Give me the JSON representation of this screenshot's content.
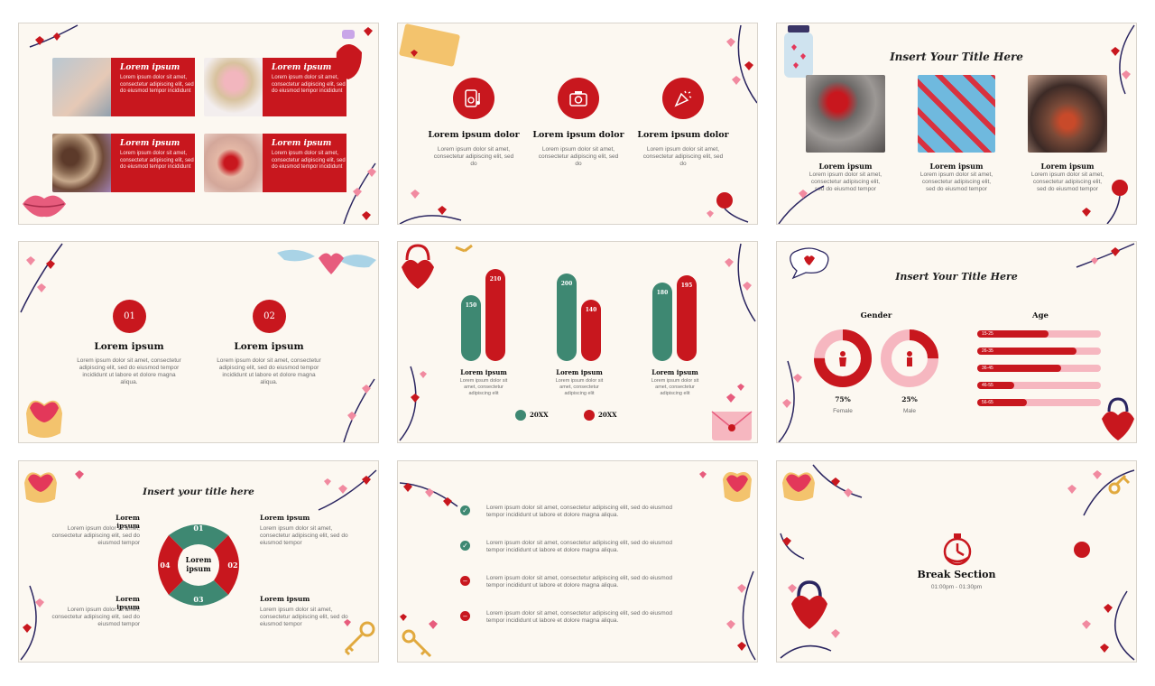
{
  "colors": {
    "red": "#c8171e",
    "green": "#3e8872",
    "pink": "#f6b7c0",
    "bg": "#fcf8f1"
  },
  "lorem_title": "Lorem ipsum",
  "lorem_title_dolor": "Lorem ipsum dolor",
  "s1": {
    "boxes": [
      {
        "title": "Lorem ipsum",
        "body": "Lorem ipsum dolor sit amet, consectetur adipiscing elit, sed do eiusmod tempor incididunt"
      },
      {
        "title": "Lorem ipsum",
        "body": "Lorem ipsum dolor sit amet, consectetur adipiscing elit, sed do eiusmod tempor incididunt"
      },
      {
        "title": "Lorem ipsum",
        "body": "Lorem ipsum dolor sit amet, consectetur adipiscing elit, sed do eiusmod tempor incididunt"
      },
      {
        "title": "Lorem ipsum",
        "body": "Lorem ipsum dolor sit amet, consectetur adipiscing elit, sed do eiusmod tempor incididunt"
      }
    ]
  },
  "s2": {
    "items": [
      {
        "title": "Lorem ipsum dolor",
        "body": "Lorem ipsum dolor sit amet, consectetur adipiscing elit, sed do",
        "icon": "music-player-icon"
      },
      {
        "title": "Lorem ipsum dolor",
        "body": "Lorem ipsum dolor sit amet, consectetur adipiscing elit, sed do",
        "icon": "camera-icon"
      },
      {
        "title": "Lorem ipsum dolor",
        "body": "Lorem ipsum dolor sit amet, consectetur adipiscing elit, sed do",
        "icon": "party-popper-icon"
      }
    ]
  },
  "s3": {
    "title": "Insert Your Title Here",
    "items": [
      {
        "title": "Lorem ipsum",
        "body": "Lorem ipsum dolor sit amet, consectetur adipiscing elit, sed do eiusmod tempor"
      },
      {
        "title": "Lorem ipsum",
        "body": "Lorem ipsum dolor sit amet, consectetur adipiscing elit, sed do eiusmod tempor"
      },
      {
        "title": "Lorem ipsum",
        "body": "Lorem ipsum dolor sit amet, consectetur adipiscing elit, sed do eiusmod tempor"
      }
    ]
  },
  "s4": {
    "items": [
      {
        "num": "01",
        "title": "Lorem ipsum",
        "body": "Lorem ipsum dolor sit amet, consectetur adipiscing elit, sed do eiusmod tempor incididunt ut labore et dolore magna aliqua."
      },
      {
        "num": "02",
        "title": "Lorem ipsum",
        "body": "Lorem ipsum dolor sit amet, consectetur adipiscing elit, sed do eiusmod tempor incididunt ut labore et dolore magna aliqua."
      }
    ]
  },
  "chart_data": {
    "type": "bar",
    "categories": [
      "Lorem ipsum",
      "Lorem ipsum",
      "Lorem ipsum"
    ],
    "category_descriptions": [
      "Lorem ipsum dolor sit amet, consectetur adipiscing elit",
      "Lorem ipsum dolor sit amet, consectetur adipiscing elit",
      "Lorem ipsum dolor sit amet, consectetur adipiscing elit"
    ],
    "series": [
      {
        "name": "20XX",
        "color": "#3e8872",
        "values": [
          150,
          200,
          180
        ]
      },
      {
        "name": "20XX",
        "color": "#c8171e",
        "values": [
          210,
          140,
          195
        ]
      }
    ],
    "ylim": [
      0,
      210
    ],
    "legend": "bottom"
  },
  "s6": {
    "title": "Insert Your Title Here",
    "gender_label": "Gender",
    "age_label": "Age",
    "gender": [
      {
        "pct": "75%",
        "value": 0.75,
        "label": "Female"
      },
      {
        "pct": "25%",
        "value": 0.25,
        "label": "Male"
      }
    ],
    "ages": [
      {
        "label": "15-25",
        "value": 0.58
      },
      {
        "label": "26-35",
        "value": 0.8
      },
      {
        "label": "36-45",
        "value": 0.68
      },
      {
        "label": "46-55",
        "value": 0.3
      },
      {
        "label": "56-65",
        "value": 0.4
      }
    ]
  },
  "s7": {
    "title": "Insert your title here",
    "center": "Lorem ipsum",
    "items": [
      {
        "title": "Lorem ipsum",
        "body": "Lorem ipsum dolor sit amet, consectetur adipiscing elit, sed do eiusmod tempor"
      },
      {
        "title": "Lorem ipsum",
        "body": "Lorem ipsum dolor sit amet, consectetur adipiscing elit, sed do eiusmod tempor"
      },
      {
        "title": "Lorem ipsum",
        "body": "Lorem ipsum dolor sit amet, consectetur adipiscing elit, sed do eiusmod tempor"
      },
      {
        "title": "Lorem ipsum",
        "body": "Lorem ipsum dolor sit amet, consectetur adipiscing elit, sed do eiusmod tempor"
      }
    ],
    "nums": [
      "01",
      "02",
      "03",
      "04"
    ]
  },
  "s8": {
    "items": [
      {
        "status": "check",
        "text": "Lorem ipsum dolor sit amet, consectetur adipiscing elit, sed do eiusmod tempor incididunt ut labore et dolore magna aliqua."
      },
      {
        "status": "check",
        "text": "Lorem ipsum dolor sit amet, consectetur adipiscing elit, sed do eiusmod tempor incididunt ut labore et dolore magna aliqua."
      },
      {
        "status": "minus",
        "text": "Lorem ipsum dolor sit amet, consectetur adipiscing elit, sed do eiusmod tempor incididunt ut labore et dolore magna aliqua."
      },
      {
        "status": "minus",
        "text": "Lorem ipsum dolor sit amet, consectetur adipiscing elit, sed do eiusmod tempor incididunt ut labore et dolore magna aliqua."
      }
    ]
  },
  "s9": {
    "title": "Break Section",
    "time": "01:00pm - 01:30pm"
  }
}
